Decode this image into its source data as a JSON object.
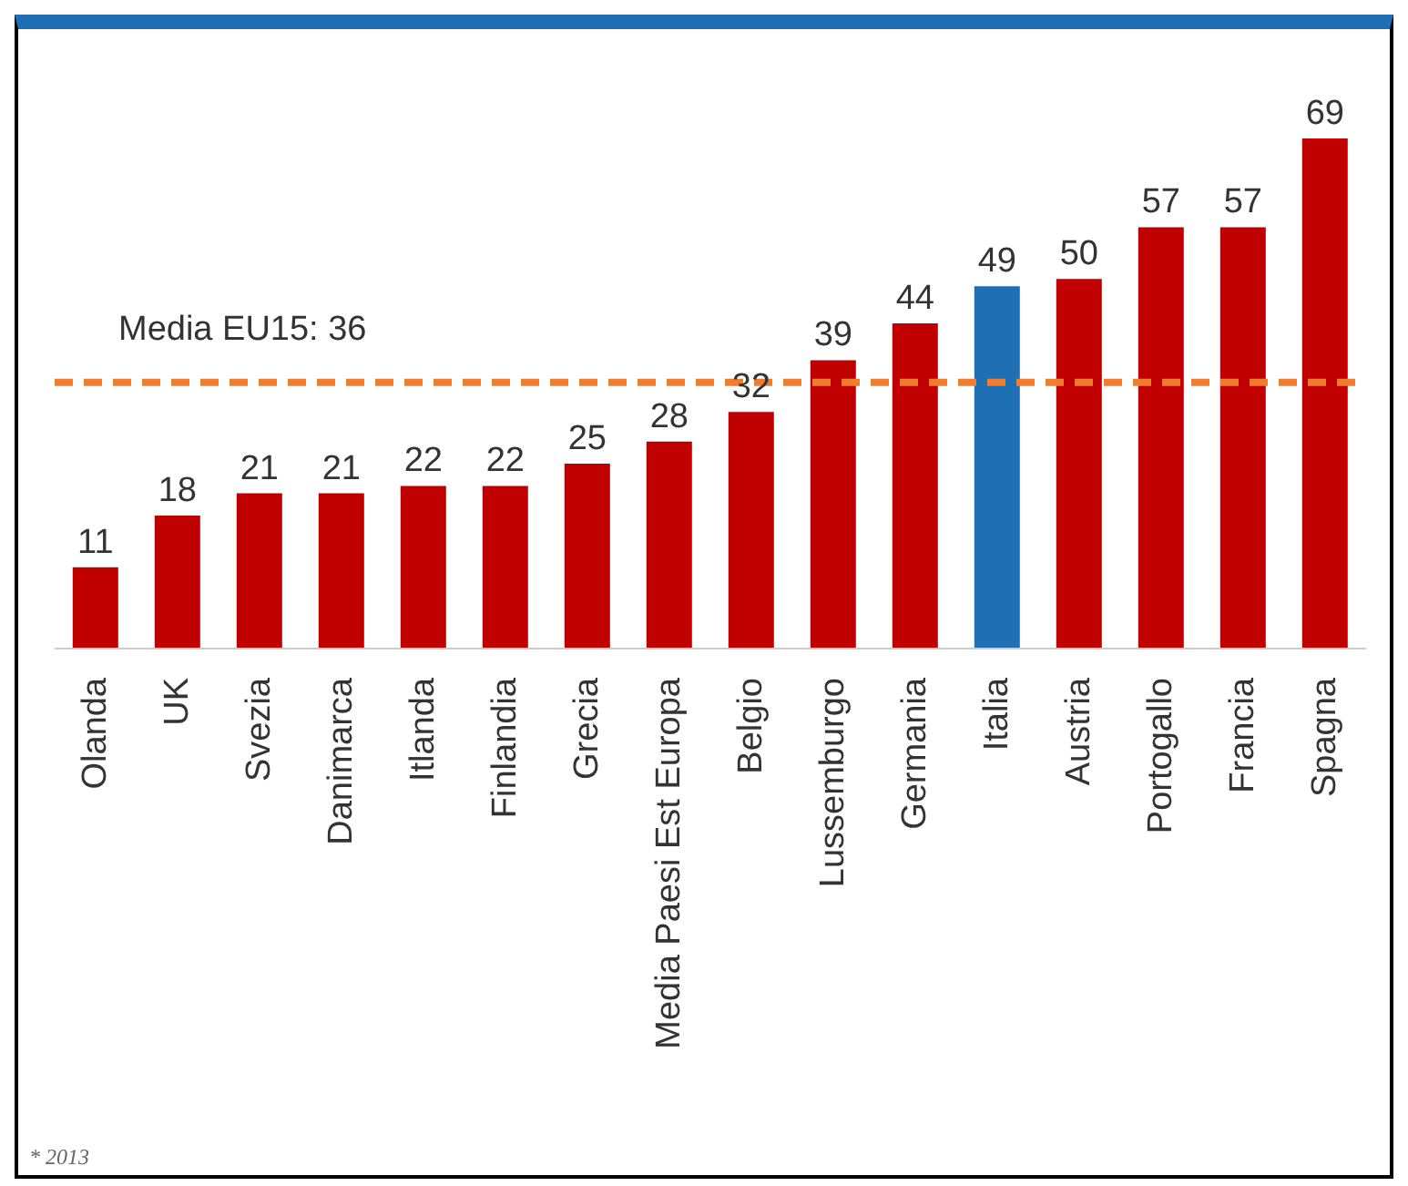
{
  "chart_data": {
    "type": "bar",
    "categories": [
      "Olanda",
      "UK",
      "Svezia",
      "Danimarca",
      "Itlanda",
      "Finlandia",
      "Grecia",
      "Media Paesi Est Europa",
      "Belgio",
      "Lussemburgo",
      "Germania",
      "Italia",
      "Austria",
      "Portogallo",
      "Francia",
      "Spagna"
    ],
    "values": [
      11,
      18,
      21,
      21,
      22,
      22,
      25,
      28,
      32,
      39,
      44,
      49,
      50,
      57,
      57,
      69
    ],
    "colors": [
      "#c00000",
      "#c00000",
      "#c00000",
      "#c00000",
      "#c00000",
      "#c00000",
      "#c00000",
      "#c00000",
      "#c00000",
      "#c00000",
      "#c00000",
      "#1f6fb5",
      "#c00000",
      "#c00000",
      "#c00000",
      "#c00000"
    ],
    "data_labels": true,
    "ref_lines": [
      {
        "axis": "y",
        "value": 36,
        "label": "Media EU15: 36",
        "color": "#f07c30",
        "line_style": "dashed"
      }
    ],
    "annotations": [
      "* 2013"
    ]
  }
}
